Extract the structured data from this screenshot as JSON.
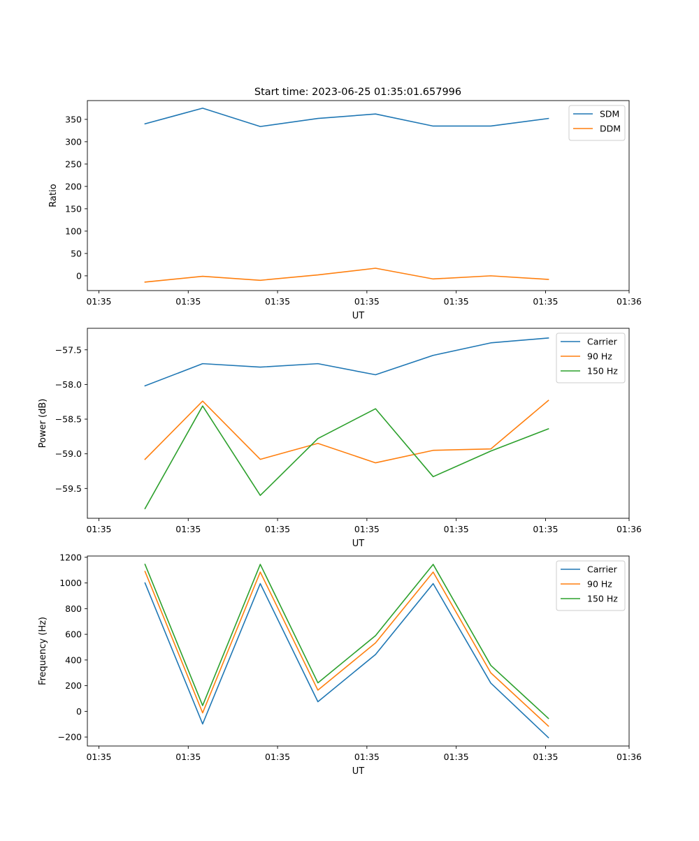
{
  "figure": {
    "title": "Start time: 2023-06-25 01:35:01.657996"
  },
  "colors": {
    "blue": "#1f77b4",
    "orange": "#ff7f0e",
    "green": "#2ca02c"
  },
  "chart_data": [
    {
      "type": "line",
      "title": "Start time: 2023-06-25 01:35:01.657996",
      "xlabel": "UT",
      "ylabel": "Ratio",
      "x": [
        1,
        2,
        3,
        4,
        5,
        6,
        7,
        8
      ],
      "xlim": [
        0,
        9.4
      ],
      "xticks": [
        0.2,
        1.75,
        3.3,
        4.85,
        6.4,
        7.95,
        9.4
      ],
      "xtick_labels": [
        "01:35",
        "01:35",
        "01:35",
        "01:35",
        "01:35",
        "01:35",
        "01:36"
      ],
      "ylim": [
        -33,
        392
      ],
      "yticks": [
        0,
        50,
        100,
        150,
        200,
        250,
        300,
        350
      ],
      "legend_position": "top-right",
      "series": [
        {
          "name": "SDM",
          "color": "#1f77b4",
          "values": [
            340,
            375,
            334,
            352,
            362,
            335,
            335,
            352
          ]
        },
        {
          "name": "DDM",
          "color": "#ff7f0e",
          "values": [
            -14,
            -1,
            -10,
            2,
            17,
            -7,
            0,
            -8
          ]
        }
      ]
    },
    {
      "type": "line",
      "xlabel": "UT",
      "ylabel": "Power (dB)",
      "x": [
        1,
        2,
        3,
        4,
        5,
        6,
        7,
        8
      ],
      "xlim": [
        0,
        9.4
      ],
      "xticks": [
        0.2,
        1.75,
        3.3,
        4.85,
        6.4,
        7.95,
        9.4
      ],
      "xtick_labels": [
        "01:35",
        "01:35",
        "01:35",
        "01:35",
        "01:35",
        "01:35",
        "01:36"
      ],
      "ylim": [
        -59.93,
        -57.19
      ],
      "yticks": [
        -59.5,
        -59.0,
        -58.5,
        -58.0,
        -57.5
      ],
      "ytick_labels": [
        "−59.5",
        "−59.0",
        "−58.5",
        "−58.0",
        "−57.5"
      ],
      "legend_position": "top-right",
      "series": [
        {
          "name": "Carrier",
          "color": "#1f77b4",
          "values": [
            -58.02,
            -57.7,
            -57.75,
            -57.7,
            -57.86,
            -57.58,
            -57.4,
            -57.33
          ]
        },
        {
          "name": "90 Hz",
          "color": "#ff7f0e",
          "values": [
            -59.08,
            -58.24,
            -59.08,
            -58.85,
            -59.13,
            -58.95,
            -58.93,
            -58.23
          ]
        },
        {
          "name": "150 Hz",
          "color": "#2ca02c",
          "values": [
            -59.79,
            -58.31,
            -59.6,
            -58.78,
            -58.35,
            -59.33,
            -58.96,
            -58.64
          ]
        }
      ]
    },
    {
      "type": "line",
      "xlabel": "UT",
      "ylabel": "Frequency (Hz)",
      "x": [
        1,
        2,
        3,
        4,
        5,
        6,
        7,
        8
      ],
      "xlim": [
        0,
        9.4
      ],
      "xticks": [
        0.2,
        1.75,
        3.3,
        4.85,
        6.4,
        7.95,
        9.4
      ],
      "xtick_labels": [
        "01:35",
        "01:35",
        "01:35",
        "01:35",
        "01:35",
        "01:35",
        "01:36"
      ],
      "ylim": [
        -270,
        1210
      ],
      "yticks": [
        -200,
        0,
        200,
        400,
        600,
        800,
        1000,
        1200
      ],
      "ytick_labels": [
        "−200",
        "0",
        "200",
        "400",
        "600",
        "800",
        "1000",
        "1200"
      ],
      "legend_position": "top-right",
      "series": [
        {
          "name": "Carrier",
          "color": "#1f77b4",
          "values": [
            1000,
            -98,
            995,
            75,
            443,
            995,
            220,
            -205
          ]
        },
        {
          "name": "90 Hz",
          "color": "#ff7f0e",
          "values": [
            1090,
            -12,
            1085,
            165,
            533,
            1085,
            300,
            -115
          ]
        },
        {
          "name": "150 Hz",
          "color": "#2ca02c",
          "values": [
            1145,
            45,
            1145,
            222,
            590,
            1145,
            358,
            -55
          ]
        }
      ]
    }
  ]
}
